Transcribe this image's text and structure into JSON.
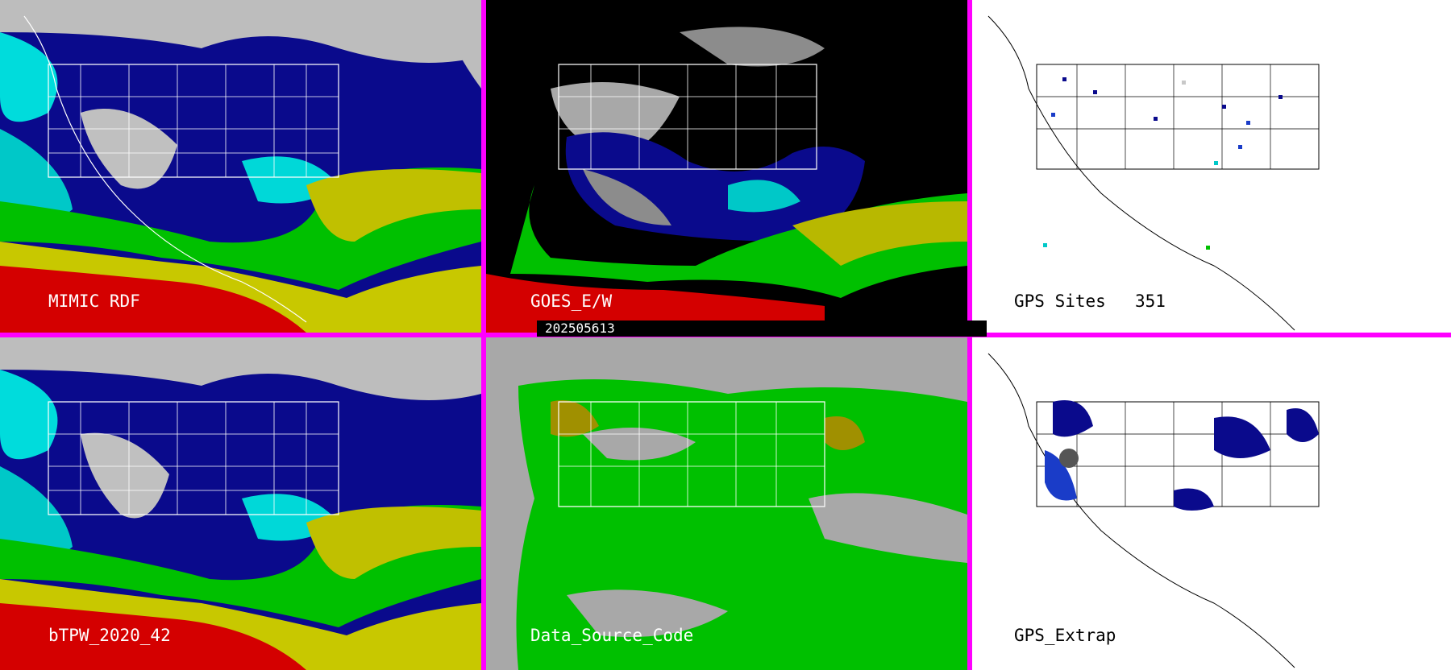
{
  "panels": {
    "mimic_rdf": {
      "label": "MIMIC RDF"
    },
    "goes_ew": {
      "label": "GOES_E/W"
    },
    "gps_sites": {
      "label": "GPS Sites",
      "count": "351"
    },
    "btpw": {
      "label": "bTPW_2020_42"
    },
    "data_source": {
      "label": "Data_Source_Code"
    },
    "gps_extrap": {
      "label": "GPS_Extrap"
    }
  },
  "timestamp": "202505613",
  "colors": {
    "separator": "#ff00ff",
    "tpw_scale": [
      "#c8c8c8",
      "#0a0a8c",
      "#1a3cc8",
      "#00e0e0",
      "#00c800",
      "#b8b800",
      "#d40000"
    ],
    "data_source_fill": "#00c000",
    "data_source_background": "#a8a8a8",
    "data_source_alt": "#a09000"
  }
}
